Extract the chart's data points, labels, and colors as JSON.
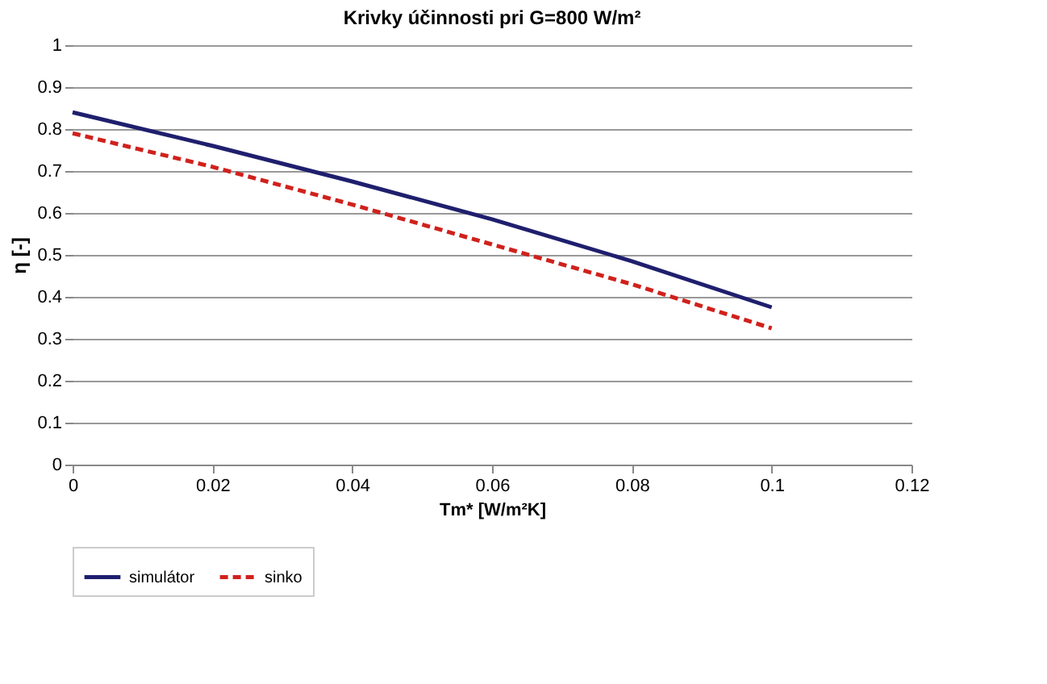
{
  "chart_data": {
    "type": "line",
    "title": "Krivky účinnosti pri G=800 W/m²",
    "xlabel": "Tm* [W/m²K]",
    "ylabel": "η [-]",
    "x": [
      0,
      0.02,
      0.04,
      0.06,
      0.08,
      0.1
    ],
    "series": [
      {
        "name": "simulátor",
        "color": "#1f1f6e",
        "line_style": "solid",
        "values": [
          0.84,
          0.76,
          0.675,
          0.585,
          0.485,
          0.375
        ]
      },
      {
        "name": "sinko",
        "color": "#d0211c",
        "line_style": "dashed",
        "values": [
          0.79,
          0.71,
          0.62,
          0.525,
          0.43,
          0.325
        ]
      }
    ],
    "xlim": [
      0,
      0.12
    ],
    "xticks": [
      0,
      0.02,
      0.04,
      0.06,
      0.08,
      0.1,
      0.12
    ],
    "ylim": [
      0,
      1
    ],
    "yticks": [
      0,
      0.1,
      0.2,
      0.3,
      0.4,
      0.5,
      0.6,
      0.7,
      0.8,
      0.9,
      1
    ],
    "grid": "y",
    "legend": "bottom",
    "marker": "none"
  }
}
